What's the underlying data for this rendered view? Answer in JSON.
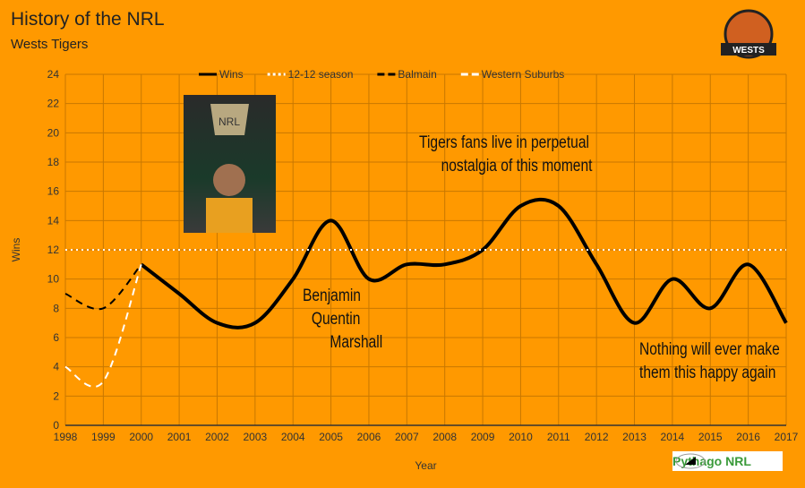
{
  "chart_data": {
    "type": "line",
    "title": "History of the NRL",
    "subtitle": "Wests Tigers",
    "xlabel": "Year",
    "ylabel": "Wins",
    "xlim": [
      1998,
      2017
    ],
    "ylim": [
      0,
      24
    ],
    "yticks": [
      0,
      2,
      4,
      6,
      8,
      10,
      12,
      14,
      16,
      18,
      20,
      22,
      24
    ],
    "xticks": [
      1998,
      1999,
      2000,
      2001,
      2002,
      2003,
      2004,
      2005,
      2006,
      2007,
      2008,
      2009,
      2010,
      2011,
      2012,
      2013,
      2014,
      2015,
      2016,
      2017
    ],
    "grid": true,
    "legend": "top",
    "series": [
      {
        "name": "Wins",
        "color": "#000000",
        "style": "solid",
        "x": [
          2000,
          2001,
          2002,
          2003,
          2004,
          2005,
          2006,
          2007,
          2008,
          2009,
          2010,
          2011,
          2012,
          2013,
          2014,
          2015,
          2016,
          2017
        ],
        "values": [
          11,
          9,
          7,
          7,
          10,
          14,
          10,
          11,
          11,
          12,
          15,
          15,
          11,
          7,
          10,
          8,
          11,
          7
        ]
      },
      {
        "name": "12-12 season",
        "color": "#ffffff",
        "style": "dotted",
        "x": [
          1998,
          2017
        ],
        "values": [
          12,
          12
        ]
      },
      {
        "name": "Balmain",
        "color": "#000000",
        "style": "dashed",
        "x": [
          1998,
          1999,
          2000
        ],
        "values": [
          9,
          8,
          11
        ]
      },
      {
        "name": "Western Suburbs",
        "color": "#ffffff",
        "style": "dashed",
        "x": [
          1998,
          1999,
          2000
        ],
        "values": [
          4,
          3,
          11
        ]
      }
    ],
    "annotations": [
      {
        "lines": [
          "Tigers fans live in perpetual",
          "nostalgia of this moment"
        ]
      },
      {
        "lines": [
          "Benjamin",
          "Quentin",
          "Marshall"
        ]
      },
      {
        "lines": [
          "Nothing will ever make",
          "them this happy again"
        ]
      }
    ]
  },
  "branding": {
    "logo_text": "WESTS TIGERS",
    "credit": "Pythago NRL"
  }
}
